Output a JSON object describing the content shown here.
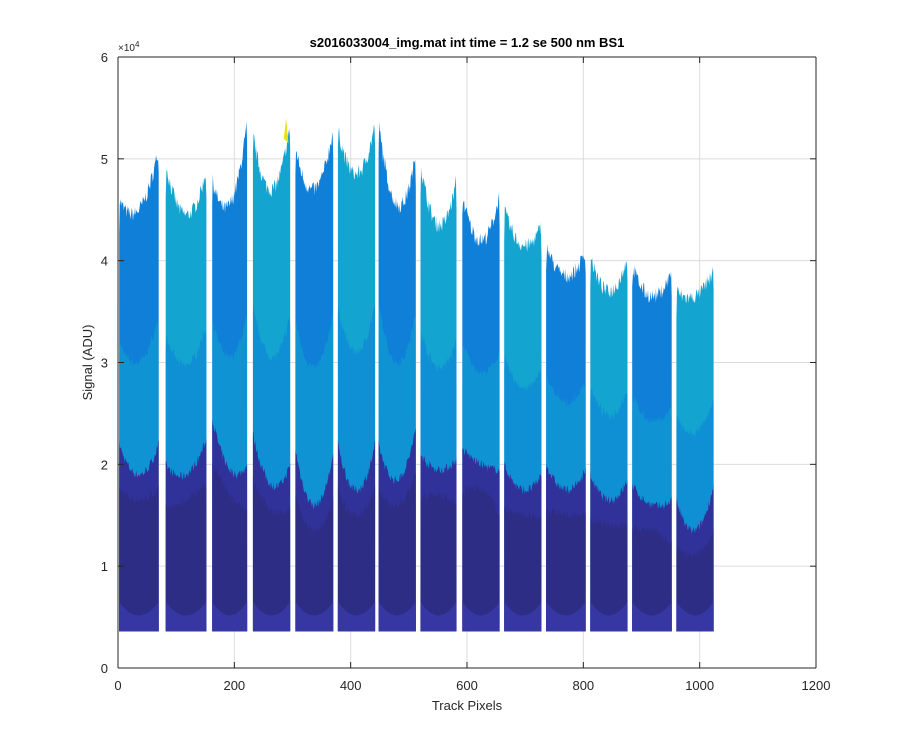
{
  "chart_data": {
    "type": "area",
    "title": "s2016033004_img.mat int time = 1.2 se  500 nm BS1",
    "xlabel": "Track Pixels",
    "ylabel": "Signal (ADU)",
    "xlim": [
      0,
      1200
    ],
    "ylim": [
      0,
      60000
    ],
    "x_ticks": [
      0,
      200,
      400,
      600,
      800,
      1000,
      1200
    ],
    "x_tick_labels": [
      "0",
      "200",
      "400",
      "600",
      "800",
      "1000",
      "1200"
    ],
    "y_ticks": [
      0,
      10000,
      20000,
      30000,
      40000,
      50000,
      60000
    ],
    "y_tick_labels": [
      "0",
      "1",
      "2",
      "3",
      "4",
      "5",
      "6"
    ],
    "y_exponent_label": "×10",
    "y_exponent": "4",
    "grid": true,
    "baseline": 3600,
    "colors": {
      "upper_primary": "#0f7fd8",
      "upper_secondary": "#13a4cf",
      "lower": "#30329a",
      "lower_dark": "#2b2a79",
      "bottom_band": "#3a3aa8",
      "highlight": "#e8e01a"
    },
    "tracks": [
      {
        "x_start": 2,
        "x_end": 70,
        "top_left": 46000,
        "top_mid": 45000,
        "top_right": 51000,
        "lower_left": 22000,
        "lower_mid": 19000,
        "lower_right": 22000
      },
      {
        "x_start": 82,
        "x_end": 152,
        "top_left": 49500,
        "top_mid": 44500,
        "top_right": 49000,
        "lower_left": 20000,
        "lower_mid": 19000,
        "lower_right": 22500
      },
      {
        "x_start": 162,
        "x_end": 222,
        "top_left": 48000,
        "top_mid": 45500,
        "top_right": 53500,
        "lower_left": 24500,
        "lower_mid": 19500,
        "lower_right": 20000
      },
      {
        "x_start": 232,
        "x_end": 296,
        "top_left": 52500,
        "top_mid": 47000,
        "top_right": 53500,
        "lower_left": 23000,
        "lower_mid": 18000,
        "lower_right": 20000
      },
      {
        "x_start": 305,
        "x_end": 370,
        "top_left": 51000,
        "top_mid": 47000,
        "top_right": 53000,
        "lower_left": 21500,
        "lower_mid": 16000,
        "lower_right": 21000
      },
      {
        "x_start": 378,
        "x_end": 442,
        "top_left": 53000,
        "top_mid": 48500,
        "top_right": 53500,
        "lower_left": 22000,
        "lower_mid": 17500,
        "lower_right": 22000
      },
      {
        "x_start": 448,
        "x_end": 512,
        "top_left": 53500,
        "top_mid": 45500,
        "top_right": 50500,
        "lower_left": 22000,
        "lower_mid": 18500,
        "lower_right": 23500
      },
      {
        "x_start": 520,
        "x_end": 582,
        "top_left": 49500,
        "top_mid": 43500,
        "top_right": 48000,
        "lower_left": 21000,
        "lower_mid": 19500,
        "lower_right": 20500
      },
      {
        "x_start": 592,
        "x_end": 656,
        "top_left": 46500,
        "top_mid": 42000,
        "top_right": 46500,
        "lower_left": 21500,
        "lower_mid": 20000,
        "lower_right": 19500
      },
      {
        "x_start": 664,
        "x_end": 728,
        "top_left": 45000,
        "top_mid": 41500,
        "top_right": 43500,
        "lower_left": 20000,
        "lower_mid": 17500,
        "lower_right": 19000
      },
      {
        "x_start": 736,
        "x_end": 804,
        "top_left": 41500,
        "top_mid": 38500,
        "top_right": 41000,
        "lower_left": 20000,
        "lower_mid": 17500,
        "lower_right": 19500
      },
      {
        "x_start": 812,
        "x_end": 876,
        "top_left": 40500,
        "top_mid": 37000,
        "top_right": 40500,
        "lower_left": 19000,
        "lower_mid": 16500,
        "lower_right": 18500
      },
      {
        "x_start": 884,
        "x_end": 952,
        "top_left": 39500,
        "top_mid": 36500,
        "top_right": 39000,
        "lower_left": 18000,
        "lower_mid": 16000,
        "lower_right": 16500
      },
      {
        "x_start": 960,
        "x_end": 1024,
        "top_left": 37000,
        "top_mid": 36500,
        "top_right": 39000,
        "lower_left": 16500,
        "lower_mid": 13500,
        "lower_right": 18000
      }
    ]
  }
}
